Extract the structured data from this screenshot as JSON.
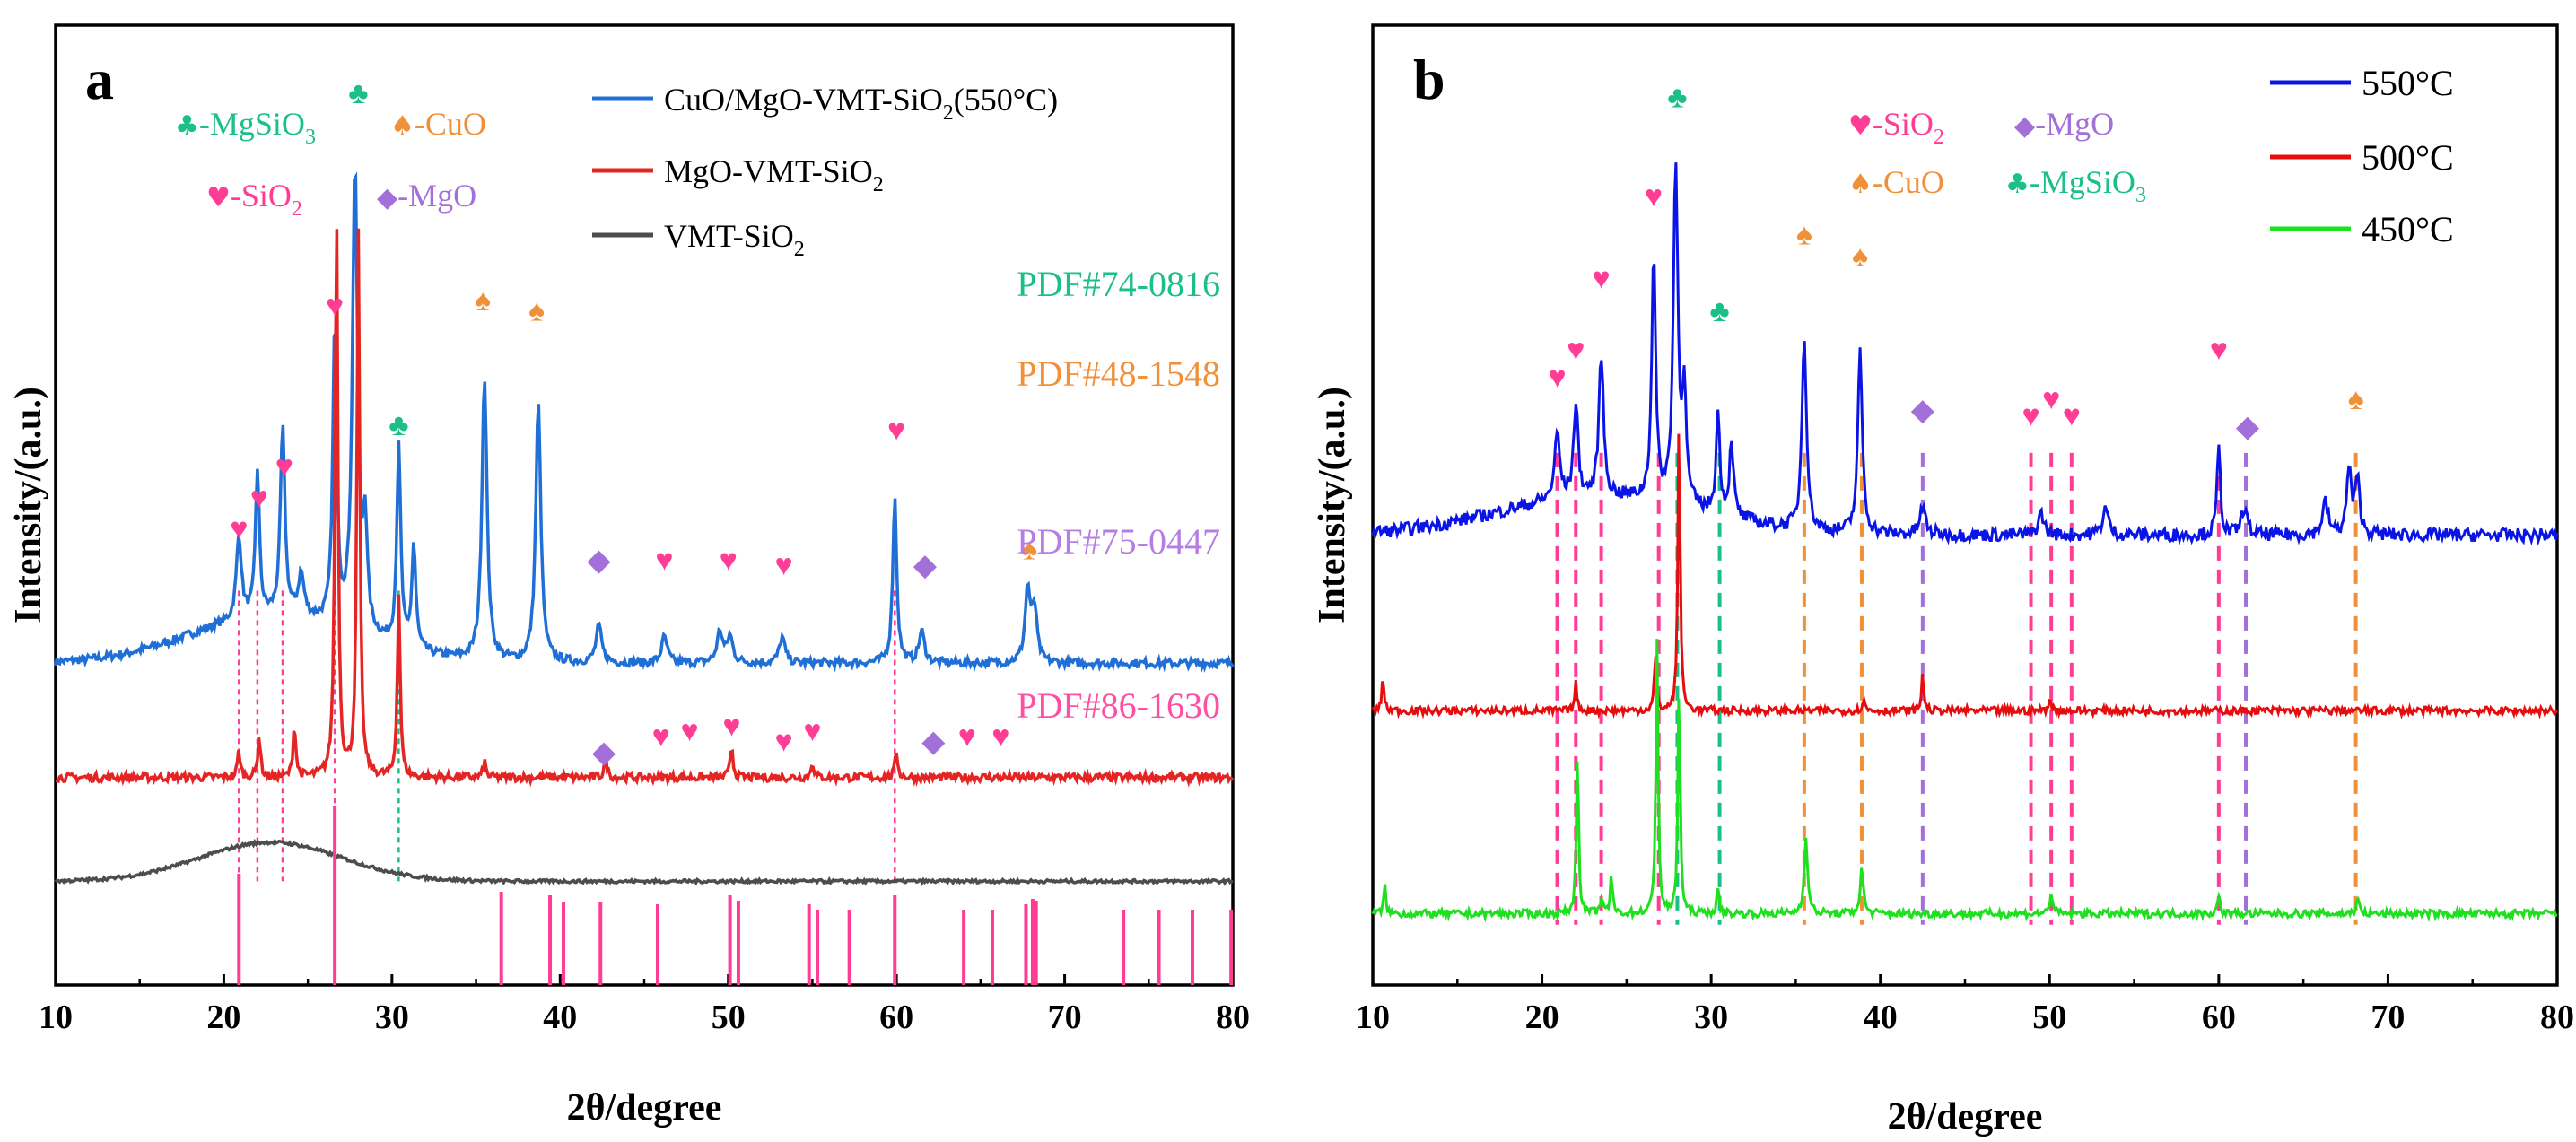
{
  "chart_data": [
    {
      "panel": "a",
      "type": "line",
      "panel_label": "a",
      "xlabel": "2θ/degree",
      "ylabel": "Intensity/(a.u.)",
      "xlim": [
        10,
        80
      ],
      "x_ticks": [
        10,
        20,
        30,
        40,
        50,
        60,
        70,
        80
      ],
      "legend_position": "top-right",
      "series": [
        {
          "name": "CuO/MgO-VMT-SiO2(550°C)",
          "label_main": "CuO/MgO-VMT-SiO",
          "label_sub": "2",
          "label_tail": "(550°C)",
          "color": "#1f6fd6",
          "baseline": 0.62,
          "peaks": [
            [
              20.9,
              0.16,
              0.18
            ],
            [
              22.0,
              0.28,
              0.14
            ],
            [
              23.5,
              0.36,
              0.16
            ],
            [
              24.6,
              0.08,
              0.2
            ],
            [
              26.6,
              0.58,
              0.14
            ],
            [
              27.8,
              0.9,
              0.18
            ],
            [
              28.4,
              0.2,
              0.15
            ],
            [
              30.4,
              0.38,
              0.14
            ],
            [
              31.3,
              0.2,
              0.14
            ],
            [
              35.5,
              0.55,
              0.18
            ],
            [
              38.7,
              0.5,
              0.18
            ],
            [
              42.3,
              0.07,
              0.2
            ],
            [
              46.2,
              0.05,
              0.2
            ],
            [
              49.5,
              0.06,
              0.2
            ],
            [
              50.1,
              0.05,
              0.2
            ],
            [
              53.2,
              0.05,
              0.2
            ],
            [
              59.9,
              0.32,
              0.14
            ],
            [
              61.5,
              0.06,
              0.2
            ],
            [
              67.8,
              0.14,
              0.18
            ],
            [
              68.2,
              0.1,
              0.18
            ]
          ],
          "hump": {
            "center": 23.0,
            "height": 0.09,
            "width": 5.0
          }
        },
        {
          "name": "MgO-VMT-SiO2",
          "label_main": "MgO-VMT-SiO",
          "label_sub": "2",
          "label_tail": "",
          "color": "#e52523",
          "baseline": 0.4,
          "peaks": [
            [
              20.9,
              0.05,
              0.1
            ],
            [
              22.1,
              0.08,
              0.1
            ],
            [
              24.2,
              0.1,
              0.1
            ],
            [
              26.7,
              1.1,
              0.1
            ],
            [
              28.0,
              1.05,
              0.1
            ],
            [
              30.4,
              0.35,
              0.1
            ],
            [
              35.5,
              0.03,
              0.1
            ],
            [
              42.7,
              0.04,
              0.1
            ],
            [
              50.2,
              0.06,
              0.1
            ],
            [
              55.0,
              0.03,
              0.1
            ],
            [
              60.0,
              0.05,
              0.1
            ]
          ],
          "hump": {
            "center": 23.0,
            "height": 0.0,
            "width": 5.0
          }
        },
        {
          "name": "VMT-SiO2",
          "label_main": "VMT-SiO",
          "label_sub": "2",
          "label_tail": "",
          "color": "#4d4d4d",
          "baseline": 0.2,
          "peaks": [],
          "hump": {
            "center": 22.8,
            "height": 0.075,
            "width": 4.2
          }
        }
      ],
      "reference_lines_pdf_86_1630": [
        {
          "x": 20.9,
          "h": 0.62
        },
        {
          "x": 26.6,
          "h": 1.0
        },
        {
          "x": 36.5,
          "h": 0.52
        },
        {
          "x": 39.4,
          "h": 0.5
        },
        {
          "x": 40.2,
          "h": 0.46
        },
        {
          "x": 42.4,
          "h": 0.46
        },
        {
          "x": 45.8,
          "h": 0.45
        },
        {
          "x": 50.1,
          "h": 0.5
        },
        {
          "x": 50.6,
          "h": 0.47
        },
        {
          "x": 54.8,
          "h": 0.45
        },
        {
          "x": 55.3,
          "h": 0.42
        },
        {
          "x": 57.2,
          "h": 0.42
        },
        {
          "x": 59.9,
          "h": 0.5
        },
        {
          "x": 64.0,
          "h": 0.42
        },
        {
          "x": 65.7,
          "h": 0.42
        },
        {
          "x": 67.7,
          "h": 0.45
        },
        {
          "x": 68.1,
          "h": 0.48
        },
        {
          "x": 68.3,
          "h": 0.47
        },
        {
          "x": 73.5,
          "h": 0.42
        },
        {
          "x": 75.6,
          "h": 0.42
        },
        {
          "x": 77.6,
          "h": 0.42
        },
        {
          "x": 79.9,
          "h": 0.42
        }
      ],
      "pdf_labels": [
        {
          "text": "PDF#74-0816",
          "color": "#1bbf8a"
        },
        {
          "text": "PDF#48-1548",
          "color": "#f0913a"
        },
        {
          "text": "PDF#75-0447",
          "color": "#b57ee6"
        },
        {
          "text": "PDF#86-1630",
          "color": "#ff4fa3"
        }
      ],
      "phase_key": [
        {
          "symbol": "♣",
          "main": "-MgSiO",
          "sub": "3",
          "color": "#1bbf8a"
        },
        {
          "symbol": "♠",
          "main": "-CuO",
          "sub": "",
          "color": "#f0913a"
        },
        {
          "symbol": "♥",
          "main": "-SiO",
          "sub": "2",
          "color": "#ff3d95"
        },
        {
          "symbol": "◆",
          "main": "-MgO",
          "sub": "",
          "color": "#a36fd8"
        }
      ],
      "markers": [
        {
          "x": 20.9,
          "y": 0.86,
          "phase": "SiO2"
        },
        {
          "x": 22.1,
          "y": 0.92,
          "phase": "SiO2"
        },
        {
          "x": 23.6,
          "y": 0.98,
          "phase": "SiO2"
        },
        {
          "x": 26.6,
          "y": 1.29,
          "phase": "SiO2"
        },
        {
          "x": 28.0,
          "y": 1.7,
          "phase": "MgSiO3"
        },
        {
          "x": 30.4,
          "y": 1.06,
          "phase": "MgSiO3"
        },
        {
          "x": 35.4,
          "y": 1.3,
          "phase": "CuO"
        },
        {
          "x": 38.6,
          "y": 1.28,
          "phase": "CuO"
        },
        {
          "x": 42.3,
          "y": 0.8,
          "phase": "MgO"
        },
        {
          "x": 46.2,
          "y": 0.8,
          "phase": "SiO2"
        },
        {
          "x": 50.0,
          "y": 0.8,
          "phase": "SiO2"
        },
        {
          "x": 53.3,
          "y": 0.79,
          "phase": "SiO2"
        },
        {
          "x": 60.0,
          "y": 1.05,
          "phase": "SiO2"
        },
        {
          "x": 61.7,
          "y": 0.79,
          "phase": "MgO"
        },
        {
          "x": 67.9,
          "y": 0.82,
          "phase": "CuO"
        },
        {
          "x": 42.6,
          "y": 0.43,
          "phase": "MgO"
        },
        {
          "x": 46.0,
          "y": 0.46,
          "phase": "SiO2"
        },
        {
          "x": 47.7,
          "y": 0.47,
          "phase": "SiO2"
        },
        {
          "x": 50.2,
          "y": 0.48,
          "phase": "SiO2"
        },
        {
          "x": 53.3,
          "y": 0.45,
          "phase": "SiO2"
        },
        {
          "x": 55.0,
          "y": 0.47,
          "phase": "SiO2"
        },
        {
          "x": 62.2,
          "y": 0.45,
          "phase": "MgO"
        },
        {
          "x": 64.2,
          "y": 0.46,
          "phase": "SiO2"
        },
        {
          "x": 66.2,
          "y": 0.46,
          "phase": "SiO2"
        }
      ],
      "guide_lines": [
        {
          "x": 20.9,
          "phase": "SiO2"
        },
        {
          "x": 22.0,
          "phase": "SiO2"
        },
        {
          "x": 23.5,
          "phase": "SiO2"
        },
        {
          "x": 26.6,
          "phase": "SiO2"
        },
        {
          "x": 30.4,
          "phase": "MgSiO3"
        },
        {
          "x": 59.9,
          "phase": "SiO2"
        }
      ]
    },
    {
      "panel": "b",
      "type": "line",
      "panel_label": "b",
      "xlabel": "2θ/degree",
      "ylabel": "Intensity/(a.u.)",
      "xlim": [
        10,
        80
      ],
      "x_ticks": [
        10,
        20,
        30,
        40,
        50,
        60,
        70,
        80
      ],
      "legend_position": "top-right",
      "series": [
        {
          "name": "550°C",
          "color": "#0a14e6",
          "baseline": 0.77,
          "peaks": [
            [
              20.9,
              0.12,
              0.18
            ],
            [
              22.0,
              0.17,
              0.16
            ],
            [
              23.5,
              0.26,
              0.16
            ],
            [
              26.6,
              0.45,
              0.14
            ],
            [
              27.9,
              0.62,
              0.16
            ],
            [
              28.4,
              0.2,
              0.14
            ],
            [
              30.4,
              0.18,
              0.14
            ],
            [
              31.2,
              0.14,
              0.14
            ],
            [
              35.5,
              0.36,
              0.16
            ],
            [
              38.8,
              0.33,
              0.16
            ],
            [
              42.5,
              0.05,
              0.2
            ],
            [
              49.5,
              0.04,
              0.2
            ],
            [
              53.3,
              0.05,
              0.2
            ],
            [
              60.0,
              0.16,
              0.12
            ],
            [
              61.5,
              0.05,
              0.2
            ],
            [
              66.3,
              0.06,
              0.2
            ],
            [
              67.7,
              0.12,
              0.16
            ],
            [
              68.2,
              0.1,
              0.16
            ]
          ],
          "hump": {
            "center": 23.5,
            "height": 0.07,
            "width": 6.0
          }
        },
        {
          "name": "500°C",
          "color": "#e50d0d",
          "baseline": 0.45,
          "peaks": [
            [
              10.6,
              0.06,
              0.08
            ],
            [
              22.0,
              0.05,
              0.08
            ],
            [
              26.7,
              0.1,
              0.08
            ],
            [
              28.1,
              0.53,
              0.08
            ],
            [
              42.5,
              0.07,
              0.08
            ],
            [
              39.0,
              0.02,
              0.1
            ],
            [
              50.0,
              0.02,
              0.1
            ]
          ],
          "hump": {
            "center": 23.0,
            "height": 0.0,
            "width": 5.0
          }
        },
        {
          "name": "450°C",
          "color": "#1ee01e",
          "baseline": 0.08,
          "peaks": [
            [
              10.7,
              0.05,
              0.08
            ],
            [
              22.1,
              0.3,
              0.08
            ],
            [
              23.5,
              0.03,
              0.08
            ],
            [
              24.1,
              0.07,
              0.08
            ],
            [
              26.8,
              0.5,
              0.08
            ],
            [
              28.1,
              0.42,
              0.08
            ],
            [
              30.4,
              0.04,
              0.1
            ],
            [
              35.6,
              0.14,
              0.12
            ],
            [
              38.9,
              0.08,
              0.12
            ],
            [
              50.1,
              0.04,
              0.1
            ],
            [
              60.0,
              0.03,
              0.1
            ],
            [
              68.2,
              0.03,
              0.1
            ]
          ],
          "hump": {
            "center": 23.0,
            "height": 0.0,
            "width": 5.0
          }
        }
      ],
      "phase_key": [
        {
          "symbol": "♥",
          "main": "-SiO",
          "sub": "2",
          "color": "#ff3d95"
        },
        {
          "symbol": "◆",
          "main": "-MgO",
          "sub": "",
          "color": "#a36fd8"
        },
        {
          "symbol": "♠",
          "main": "-CuO",
          "sub": "",
          "color": "#f0913a"
        },
        {
          "symbol": "♣",
          "main": "-MgSiO",
          "sub": "3",
          "color": "#1bbf8a"
        }
      ],
      "markers": [
        {
          "x": 20.9,
          "y": 1.04,
          "phase": "SiO2"
        },
        {
          "x": 22.0,
          "y": 1.09,
          "phase": "SiO2"
        },
        {
          "x": 23.5,
          "y": 1.22,
          "phase": "SiO2"
        },
        {
          "x": 26.6,
          "y": 1.37,
          "phase": "SiO2"
        },
        {
          "x": 28.0,
          "y": 1.55,
          "phase": "MgSiO3"
        },
        {
          "x": 30.5,
          "y": 1.16,
          "phase": "MgSiO3"
        },
        {
          "x": 35.5,
          "y": 1.3,
          "phase": "CuO"
        },
        {
          "x": 38.8,
          "y": 1.26,
          "phase": "CuO"
        },
        {
          "x": 42.5,
          "y": 0.98,
          "phase": "MgO"
        },
        {
          "x": 48.9,
          "y": 0.97,
          "phase": "SiO2"
        },
        {
          "x": 50.1,
          "y": 1.0,
          "phase": "SiO2"
        },
        {
          "x": 51.3,
          "y": 0.97,
          "phase": "SiO2"
        },
        {
          "x": 60.0,
          "y": 1.09,
          "phase": "SiO2"
        },
        {
          "x": 61.7,
          "y": 0.95,
          "phase": "MgO"
        },
        {
          "x": 68.1,
          "y": 1.0,
          "phase": "CuO"
        }
      ],
      "guide_lines": [
        {
          "x": 20.9,
          "phase": "SiO2"
        },
        {
          "x": 22.0,
          "phase": "SiO2"
        },
        {
          "x": 23.5,
          "phase": "SiO2"
        },
        {
          "x": 26.9,
          "phase": "SiO2"
        },
        {
          "x": 28.0,
          "phase": "MgSiO3"
        },
        {
          "x": 30.5,
          "phase": "MgSiO3"
        },
        {
          "x": 35.5,
          "phase": "CuO"
        },
        {
          "x": 38.9,
          "phase": "CuO"
        },
        {
          "x": 42.5,
          "phase": "MgO"
        },
        {
          "x": 48.9,
          "phase": "SiO2"
        },
        {
          "x": 50.1,
          "phase": "SiO2"
        },
        {
          "x": 51.3,
          "phase": "SiO2"
        },
        {
          "x": 60.0,
          "phase": "SiO2"
        },
        {
          "x": 61.6,
          "phase": "MgO"
        },
        {
          "x": 68.1,
          "phase": "CuO"
        }
      ]
    }
  ],
  "phase_colors": {
    "SiO2": "#ff3d95",
    "MgSiO3": "#1bbf8a",
    "CuO": "#f0913a",
    "MgO": "#a36fd8"
  },
  "phase_symbols": {
    "SiO2": "♥",
    "MgSiO3": "♣",
    "CuO": "♠",
    "MgO": "◆"
  }
}
